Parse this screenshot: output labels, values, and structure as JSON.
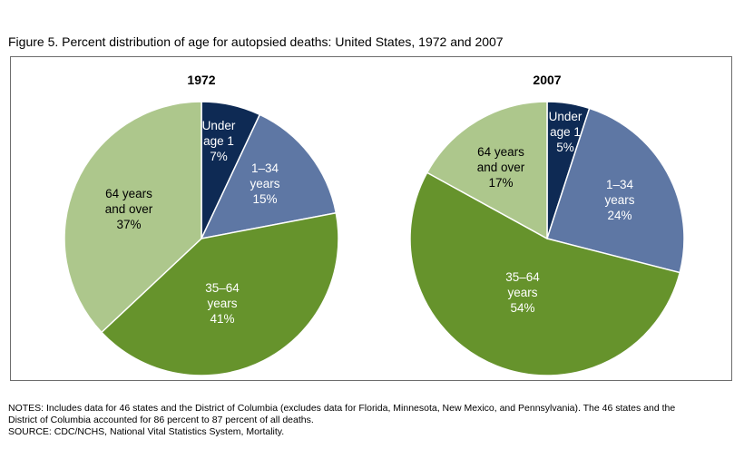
{
  "figure": {
    "title": "Figure 5. Percent distribution of age for autopsied deaths: United States, 1972 and 2007"
  },
  "chart_data": [
    {
      "type": "pie",
      "title": "1972",
      "slices": [
        {
          "label": "Under age 1",
          "value": 7,
          "lines": [
            "Under",
            "age 1",
            "7%"
          ],
          "color": "#0e2a54",
          "text_color": "#ffffff"
        },
        {
          "label": "1–34 years",
          "value": 15,
          "lines": [
            "1–34",
            "years",
            "15%"
          ],
          "color": "#5e77a4",
          "text_color": "#ffffff"
        },
        {
          "label": "35–64 years",
          "value": 41,
          "lines": [
            "35–64",
            "years",
            "41%"
          ],
          "color": "#66932c",
          "text_color": "#ffffff"
        },
        {
          "label": "64 years and over",
          "value": 37,
          "lines": [
            "64 years",
            "and over",
            "37%"
          ],
          "color": "#adc78c",
          "text_color": "#000000"
        }
      ]
    },
    {
      "type": "pie",
      "title": "2007",
      "slices": [
        {
          "label": "Under age 1",
          "value": 5,
          "lines": [
            "Under",
            "age 1",
            "5%"
          ],
          "color": "#0e2a54",
          "text_color": "#ffffff"
        },
        {
          "label": "1–34 years",
          "value": 24,
          "lines": [
            "1–34",
            "years",
            "24%"
          ],
          "color": "#5e77a4",
          "text_color": "#ffffff"
        },
        {
          "label": "35–64 years",
          "value": 54,
          "lines": [
            "35–64",
            "years",
            "54%"
          ],
          "color": "#66932c",
          "text_color": "#ffffff"
        },
        {
          "label": "64 years and over",
          "value": 17,
          "lines": [
            "64 years",
            "and over",
            "17%"
          ],
          "color": "#adc78c",
          "text_color": "#000000"
        }
      ]
    }
  ],
  "notes": {
    "line1": "NOTES: Includes data for 46 states and the District of Columbia (excludes data for Florida, Minnesota, New Mexico, and Pennsylvania). The 46 states and the",
    "line2": "District of Columbia accounted for 86 percent to 87 percent of all deaths.",
    "source": "SOURCE: CDC/NCHS, National Vital Statistics System, Mortality."
  }
}
